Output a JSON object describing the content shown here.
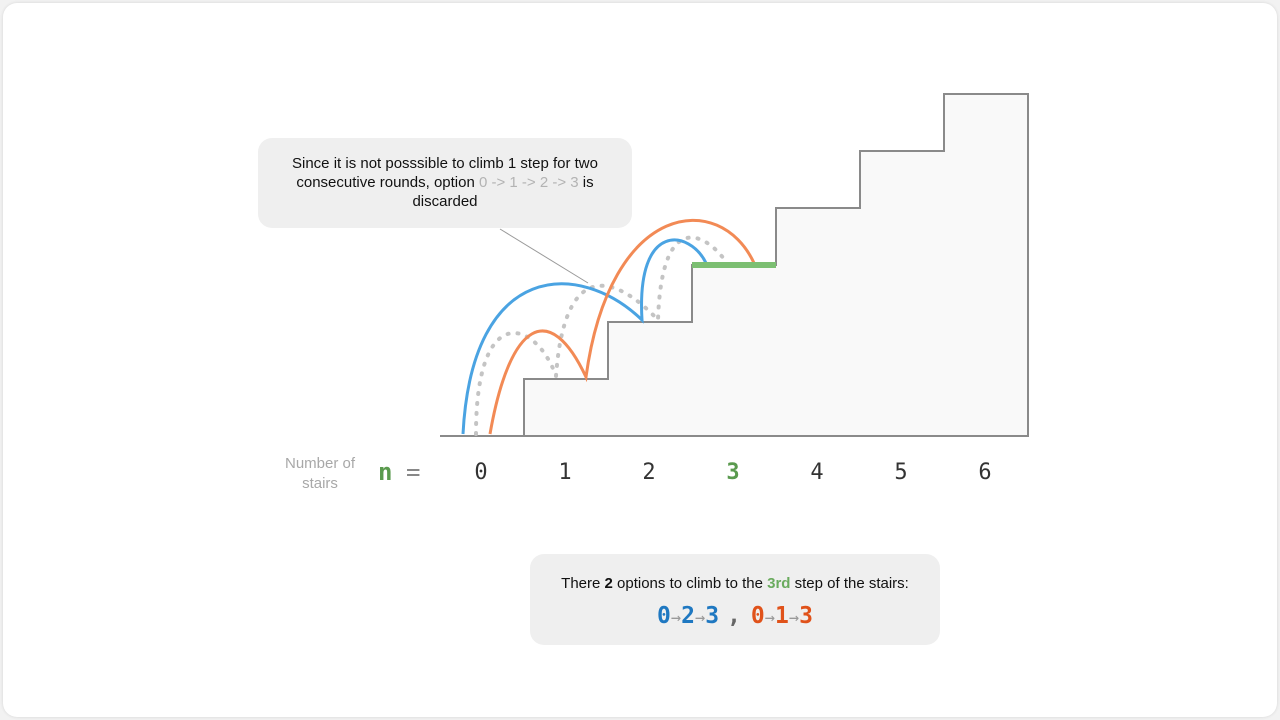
{
  "callout": {
    "text_before": "Since it is not posssible to climb 1 step for two consecutive rounds, option ",
    "discarded_option": "0 -> 1 -> 2 -> 3",
    "text_after": " is discarded"
  },
  "axis": {
    "label": "Number of stairs",
    "variable": "n",
    "equals": "=",
    "steps": [
      "0",
      "1",
      "2",
      "3",
      "4",
      "5",
      "6"
    ],
    "target_step": "3"
  },
  "result": {
    "prefix": "There ",
    "count": "2",
    "middle": " options to climb to the ",
    "target": "3rd",
    "suffix": " step of the stairs:",
    "path_blue": [
      "0",
      "2",
      "3"
    ],
    "path_orange": [
      "0",
      "1",
      "3"
    ],
    "arrow": "→",
    "separator": ","
  },
  "colors": {
    "blue_path": "#4aa3e2",
    "orange_path": "#f28a55",
    "discarded_path": "#c4c4c4",
    "target_step": "#7cbf72",
    "stairs_line": "#8a8a8a"
  }
}
